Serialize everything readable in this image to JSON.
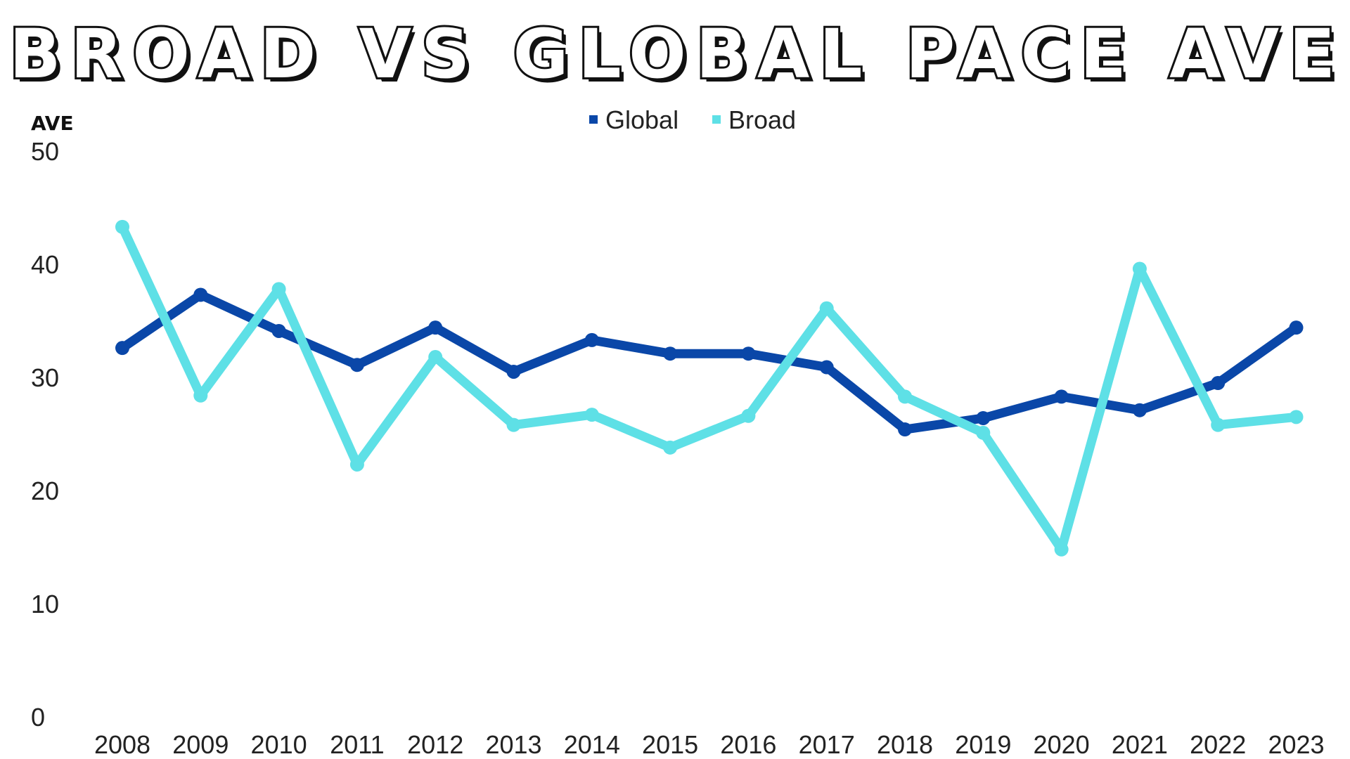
{
  "chart_data": {
    "type": "line",
    "title": "BROAD VS GLOBAL PACE AVE",
    "ylabel": "AVE",
    "xlabel": "",
    "ylim": [
      0,
      50
    ],
    "yticks": [
      0,
      10,
      20,
      30,
      40,
      50
    ],
    "grid": false,
    "legend_position": "top-center",
    "categories": [
      "2008",
      "2009",
      "2010",
      "2011",
      "2012",
      "2013",
      "2014",
      "2015",
      "2016",
      "2017",
      "2018",
      "2019",
      "2020",
      "2021",
      "2022",
      "2023"
    ],
    "series": [
      {
        "name": "Global",
        "color": "#0a47a8",
        "values": [
          32.6,
          37.3,
          34.1,
          31.1,
          34.4,
          30.5,
          33.3,
          32.1,
          32.1,
          30.9,
          25.4,
          26.4,
          28.3,
          27.1,
          29.5,
          34.4
        ]
      },
      {
        "name": "Broad",
        "color": "#5ee0e6",
        "values": [
          43.3,
          28.4,
          37.8,
          22.3,
          31.8,
          25.8,
          26.7,
          23.8,
          26.6,
          36.1,
          28.3,
          25.1,
          14.8,
          39.6,
          25.8,
          26.5
        ]
      }
    ]
  }
}
